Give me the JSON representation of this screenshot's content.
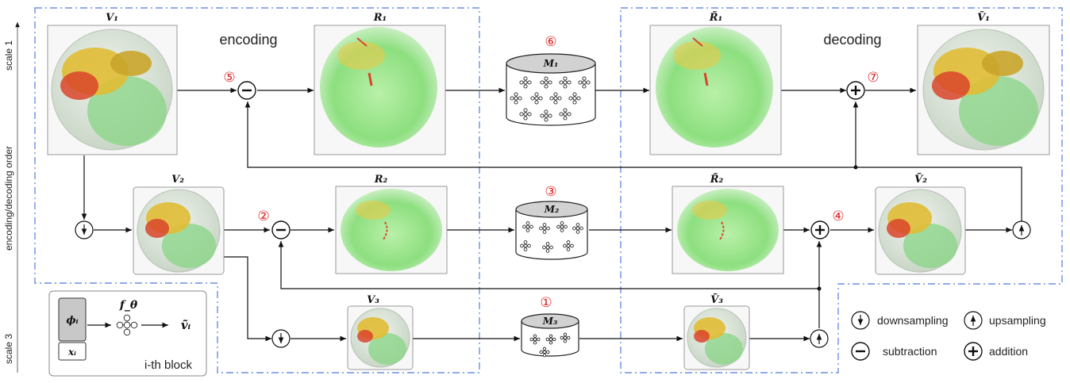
{
  "axis": {
    "top_label": "scale 1",
    "middle_label": "encoding/decoding order",
    "bottom_label": "scale 3"
  },
  "stages": {
    "encoding": "encoding",
    "decoding": "decoding"
  },
  "volumes": {
    "v1": "V₁",
    "v2": "V₂",
    "v3": "V₃",
    "r1": "R₁",
    "r2": "R₂",
    "r1_hat": "R̃₁",
    "r2_hat": "R̃₂",
    "v1_hat": "Ṽ₁",
    "v2_hat": "Ṽ₂",
    "v3_hat": "Ṽ₃"
  },
  "models": {
    "m1": "M₁",
    "m2": "M₂",
    "m3": "M₃"
  },
  "steps": {
    "s1": "①",
    "s2": "②",
    "s3": "③",
    "s4": "④",
    "s5": "⑤",
    "s6": "⑥",
    "s7": "⑦"
  },
  "legend": {
    "downsampling": "downsampling",
    "upsampling": "upsampling",
    "subtraction": "subtraction",
    "addition": "addition"
  },
  "block": {
    "phi": "ϕᵢ",
    "x": "xᵢ",
    "f": "f_θ",
    "v": "ṽᵢ",
    "caption": "i-th block"
  },
  "colors": {
    "dash": "#6b8fe0",
    "step": "#e02020",
    "green": "#7fd87a",
    "yellow": "#e3c23a",
    "red": "#d9452b"
  }
}
